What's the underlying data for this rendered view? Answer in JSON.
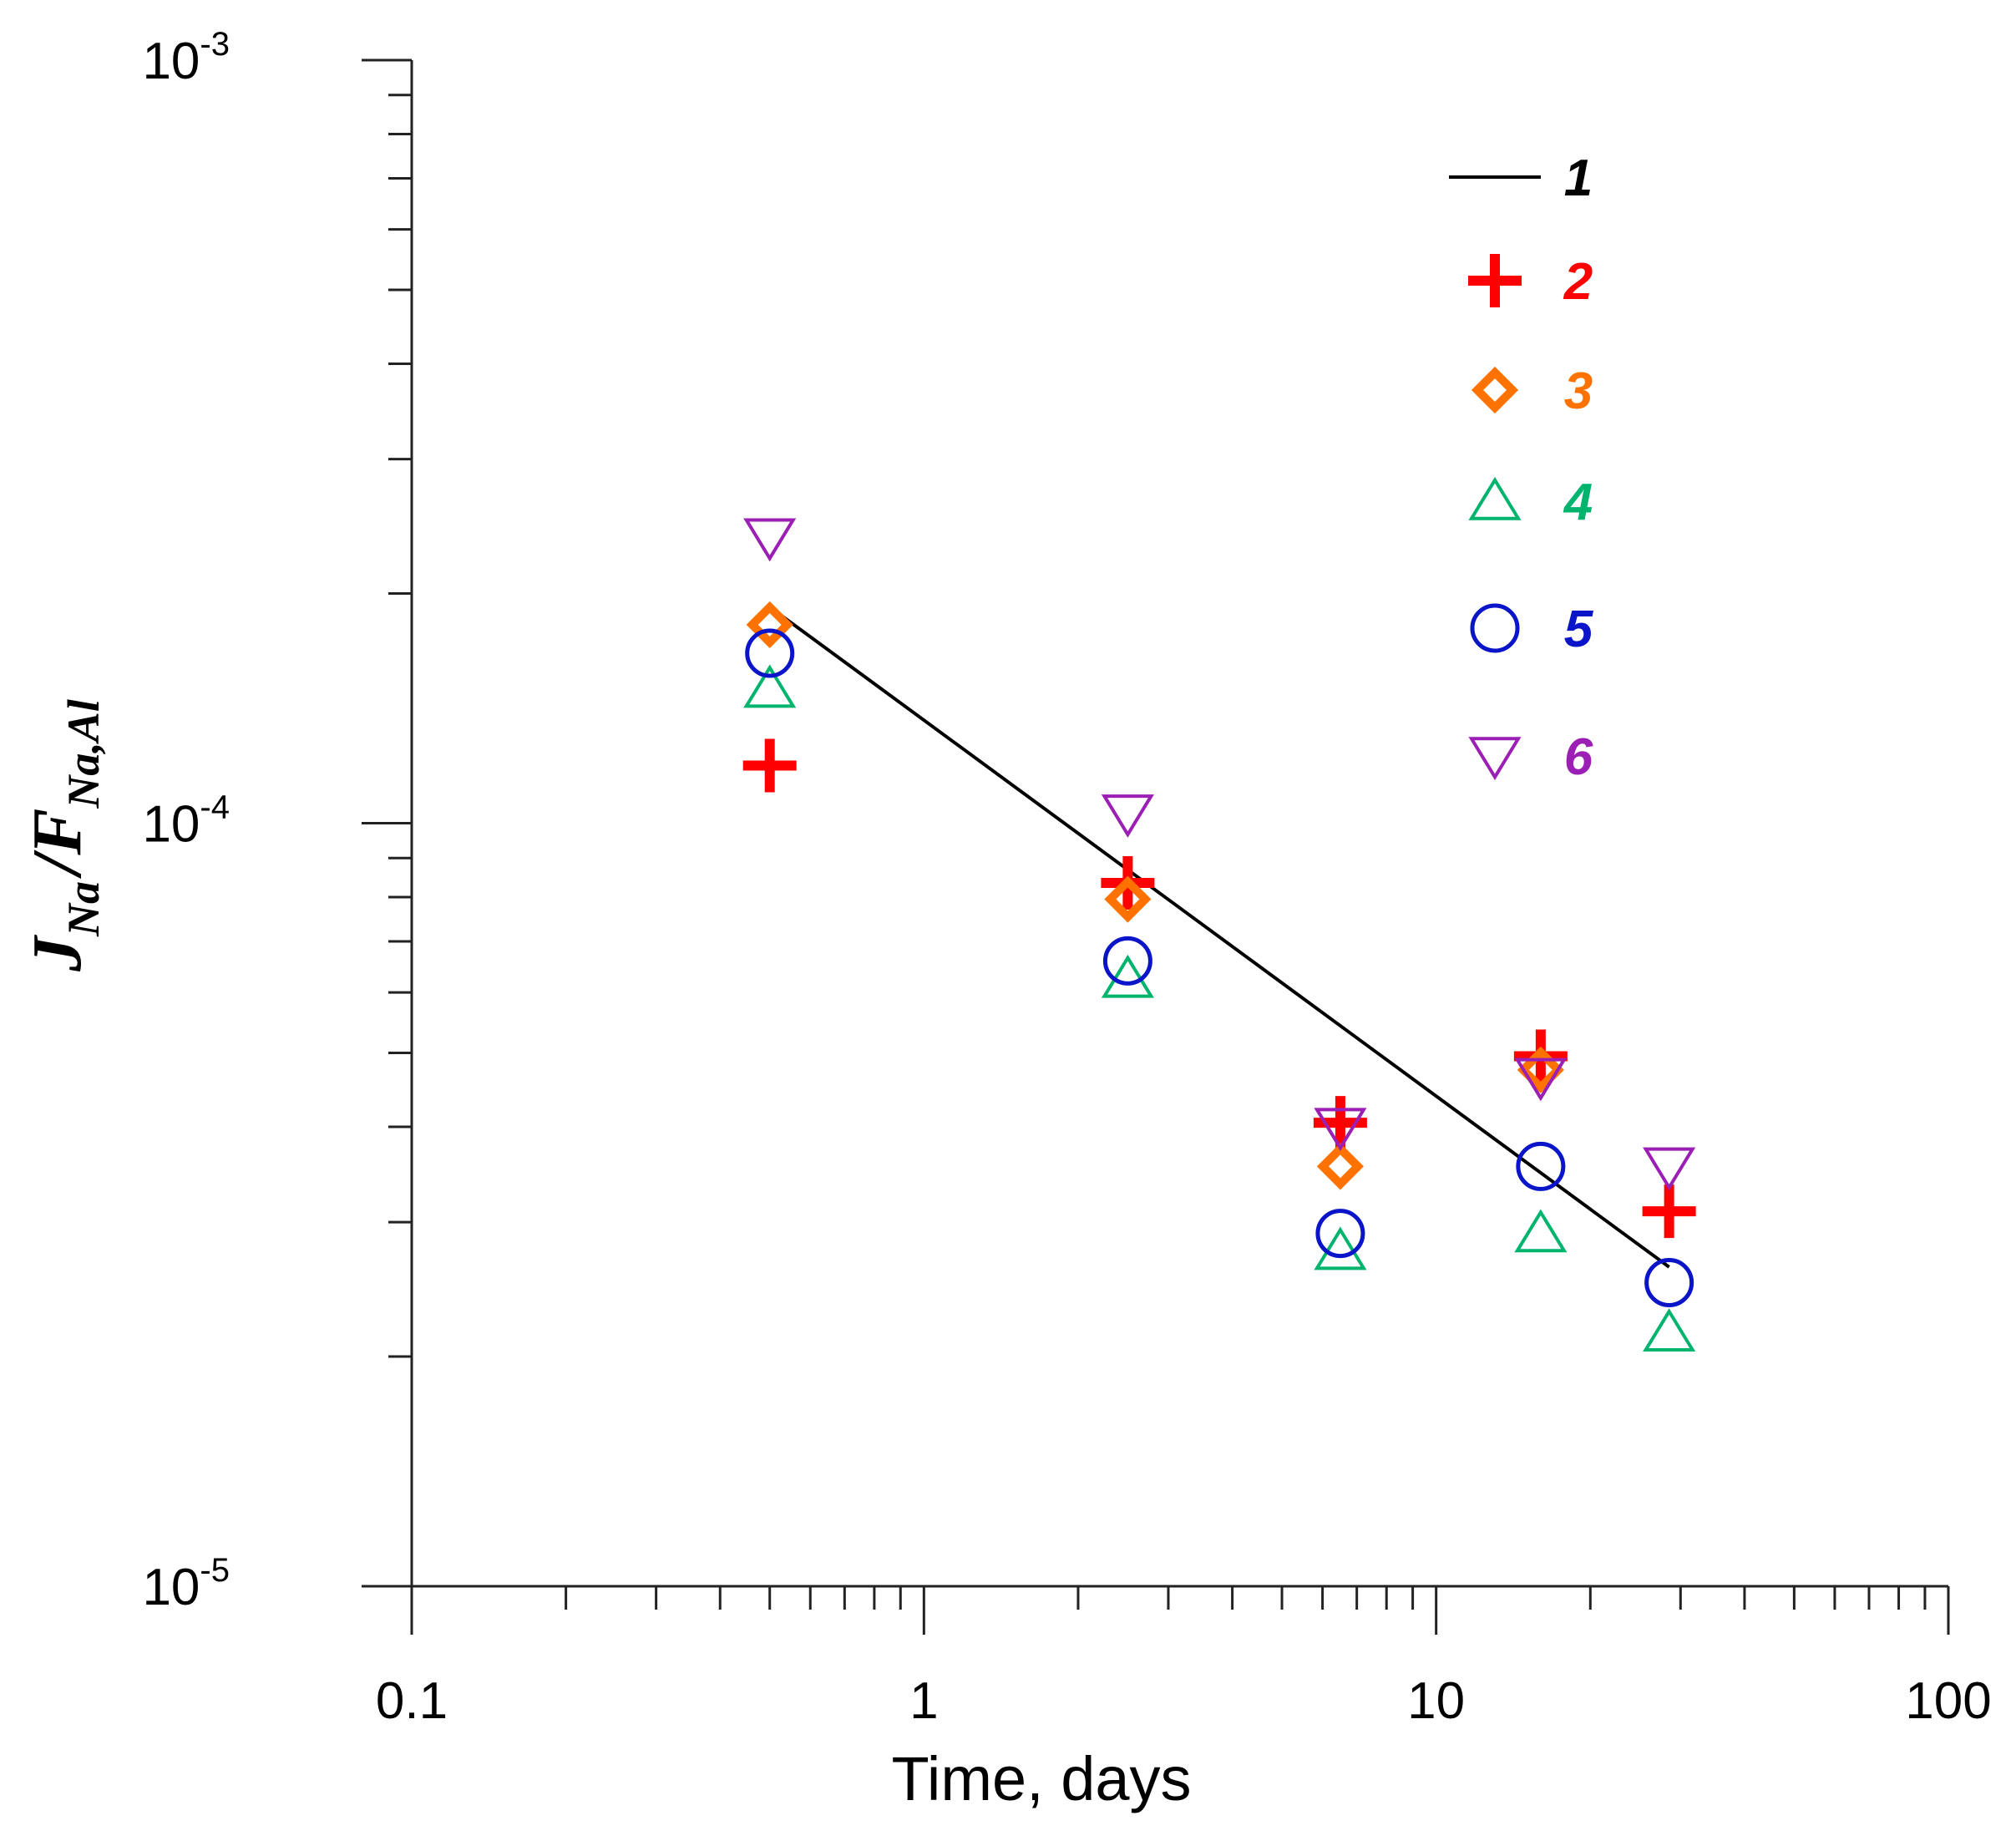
{
  "chart_data": {
    "type": "scatter",
    "title": "",
    "xlabel": "Time, days",
    "ylabel": {
      "main1": "J",
      "sub1": "Na",
      "sep": "/",
      "main2": "F",
      "sub2": "Na,Al"
    },
    "xscale": "log",
    "yscale": "log",
    "xlim": [
      0.1,
      100
    ],
    "ylim": [
      1e-05,
      0.001
    ],
    "x_ticks": [
      {
        "value": 0.1,
        "label": "0.1"
      },
      {
        "value": 1,
        "label": "1"
      },
      {
        "value": 10,
        "label": "10"
      },
      {
        "value": 100,
        "label": "100"
      }
    ],
    "y_ticks": [
      {
        "value": 0.001,
        "base": "10",
        "exp": "-3"
      },
      {
        "value": 0.0001,
        "base": "10",
        "exp": "-4"
      },
      {
        "value": 1e-05,
        "base": "10",
        "exp": "-5"
      }
    ],
    "legend_position": "top-right",
    "series": [
      {
        "name": "1",
        "style": "line",
        "marker": "none",
        "color": "#000000",
        "x": [
          0.5,
          28.5
        ],
        "y": [
          0.000192,
          2.62e-05
        ]
      },
      {
        "name": "2",
        "style": "marker",
        "marker": "plus",
        "color": "#ff0000",
        "x": [
          0.5,
          2.5,
          6.5,
          16,
          28.5
        ],
        "y": [
          0.000119,
          8.35e-05,
          4.05e-05,
          4.95e-05,
          3.1e-05
        ]
      },
      {
        "name": "3",
        "style": "marker",
        "marker": "diamond",
        "color": "#ff7200",
        "x": [
          0.5,
          2.5,
          6.5,
          16
        ],
        "y": [
          0.000182,
          7.95e-05,
          3.55e-05,
          4.75e-05
        ]
      },
      {
        "name": "4",
        "style": "marker",
        "marker": "triangle-up",
        "color": "#00b46e",
        "x": [
          0.5,
          2.5,
          6.5,
          16,
          28.5
        ],
        "y": [
          0.00015,
          6.25e-05,
          2.75e-05,
          2.9e-05,
          2.15e-05
        ]
      },
      {
        "name": "5",
        "style": "marker",
        "marker": "circle",
        "color": "#0a14c8",
        "x": [
          0.5,
          2.5,
          6.5,
          16,
          28.5
        ],
        "y": [
          0.000167,
          6.6e-05,
          2.9e-05,
          3.55e-05,
          2.5e-05
        ]
      },
      {
        "name": "6",
        "style": "marker",
        "marker": "triangle-down",
        "color": "#9b1fb4",
        "x": [
          0.5,
          2.5,
          6.5,
          16,
          28.5
        ],
        "y": [
          0.000237,
          0.000103,
          4e-05,
          4.65e-05,
          3.55e-05
        ]
      }
    ]
  }
}
